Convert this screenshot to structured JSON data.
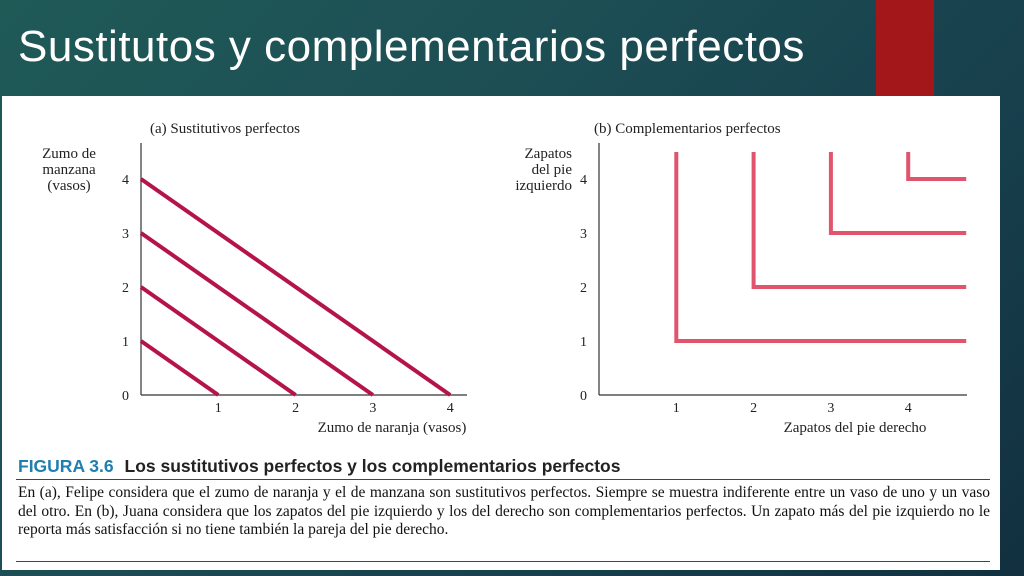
{
  "slide": {
    "title": "Sustitutos y complementarios perfectos",
    "accent_color": "#a3171a"
  },
  "figure": {
    "number": "FIGURA 3.6",
    "title": "Los sustitutivos perfectos y los complementarios perfectos",
    "caption": "En (a), Felipe considera que el zumo de naranja y el de manzana son sustitutivos perfectos. Siempre se muestra indiferente entre un vaso de uno y un vaso del otro. En (b), Juana considera que los zapatos del pie izquierdo y los del derecho son complementarios perfectos. Un zapato más del pie izquierdo no le reporta más satisfacción si no tiene también la pareja del pie derecho."
  },
  "chart_data": [
    {
      "type": "line",
      "title": "(a) Sustitutivos perfectos",
      "xlabel": "Zumo de naranja (vasos)",
      "ylabel_lines": [
        "Zumo de",
        "manzana",
        "(vasos)"
      ],
      "xticks": [
        "0",
        "1",
        "2",
        "3",
        "4"
      ],
      "yticks": [
        "0",
        "1",
        "2",
        "3",
        "4"
      ],
      "xlim": [
        0,
        4.5
      ],
      "ylim": [
        0,
        4.5
      ],
      "grid": false,
      "line_color": "#b5134b",
      "series": [
        {
          "points": [
            [
              0,
              1
            ],
            [
              1,
              0
            ]
          ]
        },
        {
          "points": [
            [
              0,
              2
            ],
            [
              2,
              0
            ]
          ]
        },
        {
          "points": [
            [
              0,
              3
            ],
            [
              3,
              0
            ]
          ]
        },
        {
          "points": [
            [
              0,
              4
            ],
            [
              4,
              0
            ]
          ]
        }
      ]
    },
    {
      "type": "line",
      "title": "(b) Complementarios perfectos",
      "xlabel": "Zapatos del pie derecho",
      "ylabel_lines": [
        "Zapatos",
        "del pie",
        "izquierdo"
      ],
      "xticks": [
        "1",
        "2",
        "3",
        "4"
      ],
      "yticks": [
        "0",
        "1",
        "2",
        "3",
        "4"
      ],
      "xlim": [
        0,
        4.75
      ],
      "ylim": [
        0,
        4.5
      ],
      "grid": false,
      "line_color": "#e0546e",
      "series": [
        {
          "points": [
            [
              1,
              4.5
            ],
            [
              1,
              1
            ],
            [
              4.75,
              1
            ]
          ]
        },
        {
          "points": [
            [
              2,
              4.5
            ],
            [
              2,
              2
            ],
            [
              4.75,
              2
            ]
          ]
        },
        {
          "points": [
            [
              3,
              4.5
            ],
            [
              3,
              3
            ],
            [
              4.75,
              3
            ]
          ]
        },
        {
          "points": [
            [
              4,
              4.5
            ],
            [
              4,
              4
            ],
            [
              4.75,
              4
            ]
          ]
        }
      ]
    }
  ]
}
